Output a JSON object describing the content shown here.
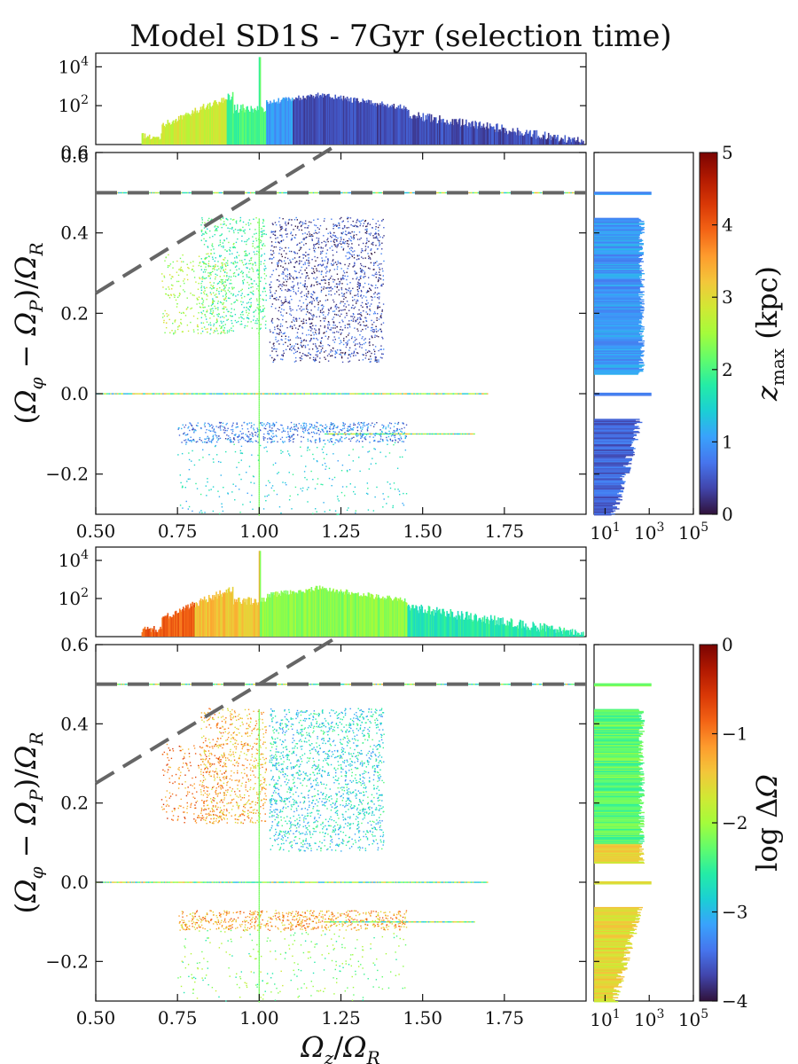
{
  "title": "Model SD1S - 7Gyr (selection time)",
  "colors": {
    "dashed_line": "#666666",
    "axes": "#111111",
    "turbo_stops": [
      "#30123b",
      "#4145ab",
      "#4675ed",
      "#39a2fc",
      "#1bcfd4",
      "#24eca6",
      "#61fc6c",
      "#a4fc3b",
      "#d1e834",
      "#f3c63a",
      "#fe9b2d",
      "#f36315",
      "#d93806",
      "#b11901",
      "#7a0402"
    ]
  },
  "chart_data": [
    {
      "id": "top",
      "type": "scatter",
      "description_free": true,
      "xlabel": "Ωz/ΩR",
      "ylabel": "(Ωφ − ΩP)/ΩR",
      "xlim": [
        0.5,
        2.0
      ],
      "ylim": [
        -0.3,
        0.6
      ],
      "xticks": [
        0.5,
        0.75,
        1.0,
        1.25,
        1.5,
        1.75
      ],
      "xticklabels": [
        "0.50",
        "0.75",
        "1.00",
        "1.25",
        "1.50",
        "1.75"
      ],
      "yticks": [
        -0.2,
        0.0,
        0.2,
        0.4,
        0.6
      ],
      "yticklabels": [
        "−0.2",
        "0.0",
        "0.2",
        "0.4",
        "0.6"
      ],
      "color_quantity": "zmax",
      "colorbar": {
        "label": "z_max (kpc)",
        "range": [
          0,
          5
        ],
        "ticks": [
          0,
          1,
          2,
          3,
          4,
          5
        ],
        "ticklabels": [
          "0",
          "1",
          "2",
          "3",
          "4",
          "5"
        ]
      },
      "hist_x": {
        "scale": "log",
        "yticklabels": [
          "10^2",
          "10^4"
        ],
        "ytickvalues": [
          2,
          4
        ],
        "ybottom_label": "0.6"
      },
      "hist_y": {
        "scale": "log",
        "xticklabels": [
          "10^1",
          "10^3",
          "10^5"
        ],
        "xtickvalues": [
          1,
          3,
          5
        ]
      },
      "dashed_lines": [
        {
          "type": "horizontal",
          "y": 0.5
        },
        {
          "type": "diagonal",
          "x1": 0.5,
          "y1": 0.25,
          "x2": 1.25,
          "y2": 0.625
        }
      ],
      "clusters": [
        {
          "xmin": 1.03,
          "xmax": 1.38,
          "ymin": 0.08,
          "ymax": 0.44,
          "value": 0.4,
          "density": "high"
        },
        {
          "xmin": 0.82,
          "xmax": 1.02,
          "ymin": 0.15,
          "ymax": 0.44,
          "value": 1.9,
          "density": "medium"
        },
        {
          "xmin": 0.7,
          "xmax": 0.9,
          "ymin": 0.15,
          "ymax": 0.35,
          "value": 2.6,
          "density": "low"
        },
        {
          "xmin": 0.75,
          "xmax": 1.45,
          "ymin": -0.12,
          "ymax": -0.07,
          "value": 0.8,
          "density": "medium"
        },
        {
          "xmin": 0.75,
          "xmax": 1.45,
          "ymin": -0.3,
          "ymax": -0.12,
          "value": 1.5,
          "density": "low"
        }
      ]
    },
    {
      "id": "bottom",
      "type": "scatter",
      "xlabel": "Ωz/ΩR",
      "ylabel": "(Ωφ − ΩP)/ΩR",
      "xlim": [
        0.5,
        2.0
      ],
      "ylim": [
        -0.3,
        0.6
      ],
      "xticks": [
        0.5,
        0.75,
        1.0,
        1.25,
        1.5,
        1.75
      ],
      "xticklabels": [
        "0.50",
        "0.75",
        "1.00",
        "1.25",
        "1.50",
        "1.75"
      ],
      "yticks": [
        -0.2,
        0.0,
        0.2,
        0.4,
        0.6
      ],
      "yticklabels": [
        "−0.2",
        "0.0",
        "0.2",
        "0.4",
        "0.6"
      ],
      "color_quantity": "log ΔΩ",
      "colorbar": {
        "label": "log ΔΩ",
        "range": [
          -4,
          0
        ],
        "ticks": [
          -4,
          -3,
          -2,
          -1,
          0
        ],
        "ticklabels": [
          "−4",
          "−3",
          "−2",
          "−1",
          "0"
        ]
      },
      "hist_x": {
        "scale": "log",
        "yticklabels": [
          "10^2",
          "10^4"
        ],
        "ytickvalues": [
          2,
          4
        ]
      },
      "hist_y": {
        "scale": "log",
        "xticklabels": [
          "10^1",
          "10^3",
          "10^5"
        ],
        "xtickvalues": [
          1,
          3,
          5
        ]
      },
      "dashed_lines": [
        {
          "type": "horizontal",
          "y": 0.5
        },
        {
          "type": "diagonal",
          "x1": 0.5,
          "y1": 0.25,
          "x2": 1.25,
          "y2": 0.625
        }
      ],
      "clusters": [
        {
          "xmin": 1.03,
          "xmax": 1.38,
          "ymin": 0.08,
          "ymax": 0.44,
          "value": -2.8,
          "density": "high"
        },
        {
          "xmin": 0.82,
          "xmax": 1.02,
          "ymin": 0.15,
          "ymax": 0.44,
          "value": -1.3,
          "density": "medium"
        },
        {
          "xmin": 0.7,
          "xmax": 0.9,
          "ymin": 0.15,
          "ymax": 0.35,
          "value": -1.0,
          "density": "low"
        },
        {
          "xmin": 0.75,
          "xmax": 1.45,
          "ymin": -0.12,
          "ymax": -0.07,
          "value": -1.2,
          "density": "medium"
        },
        {
          "xmin": 0.75,
          "xmax": 1.45,
          "ymin": -0.3,
          "ymax": -0.12,
          "value": -2.2,
          "density": "low"
        }
      ]
    }
  ]
}
